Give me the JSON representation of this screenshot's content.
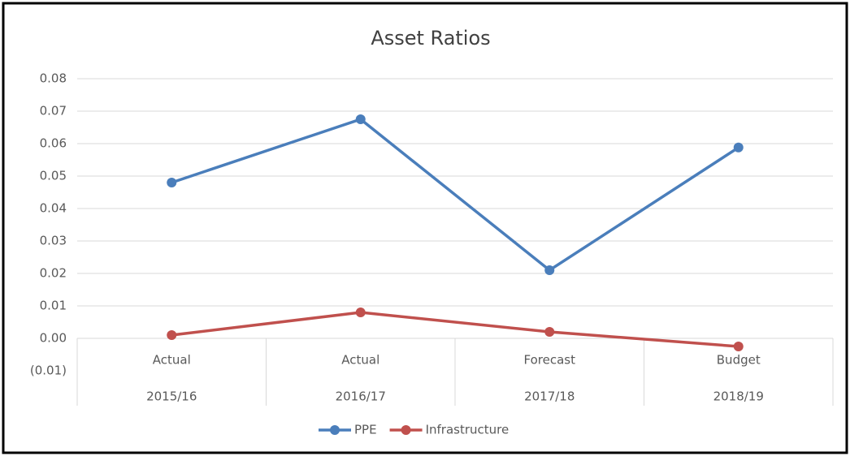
{
  "chart_data": {
    "type": "line",
    "title": "Asset Ratios",
    "categories": [
      "Actual",
      "Actual",
      "Forecast",
      "Budget"
    ],
    "category_groups": [
      "2015/16",
      "2016/17",
      "2017/18",
      "2018/19"
    ],
    "series": [
      {
        "name": "PPE",
        "color": "#4a7ebb",
        "values": [
          0.048,
          0.0675,
          0.021,
          0.0588
        ]
      },
      {
        "name": "Infrastructure",
        "color": "#c0504d",
        "values": [
          0.001,
          0.008,
          0.002,
          -0.0025
        ]
      }
    ],
    "ylim": [
      -0.01,
      0.08
    ],
    "yticks": [
      {
        "value": -0.01,
        "label": "(0.01)"
      },
      {
        "value": 0,
        "label": "0.00"
      },
      0.01,
      0.02,
      0.03,
      0.04,
      0.05,
      0.06,
      0.07,
      0.08
    ],
    "grid": true,
    "legend": "bottom"
  }
}
